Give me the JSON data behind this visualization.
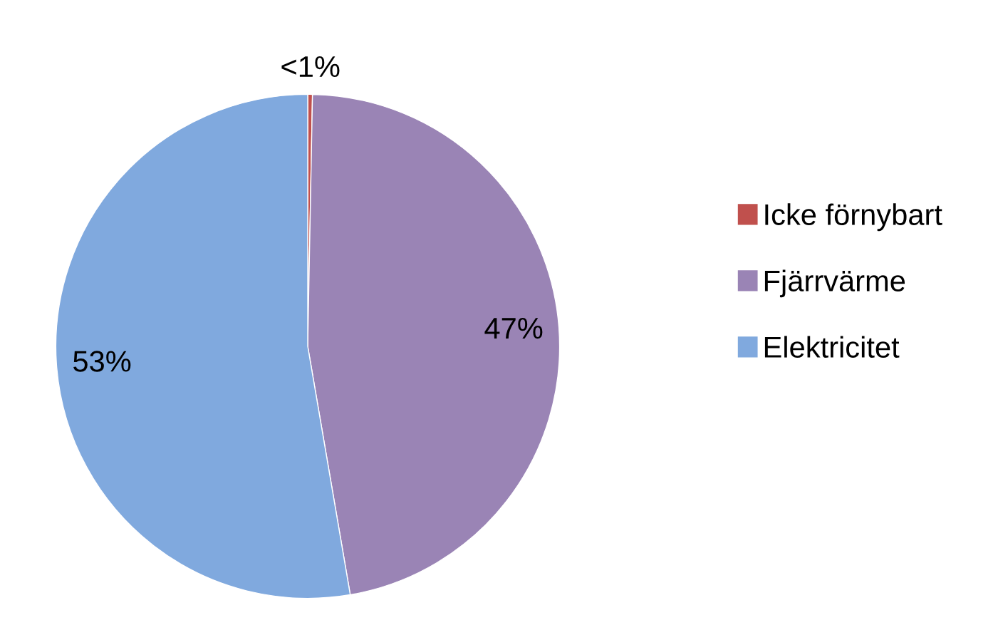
{
  "chart_data": {
    "type": "pie",
    "categories": [
      "Icke förnybart",
      "Fjärrvärme",
      "Elektricitet"
    ],
    "values": [
      0.3,
      47,
      52.7
    ],
    "value_labels": [
      "<1%",
      "47%",
      "53%"
    ],
    "colors": [
      "#c0504d",
      "#9a84b5",
      "#80a9de"
    ],
    "legend": "right"
  }
}
